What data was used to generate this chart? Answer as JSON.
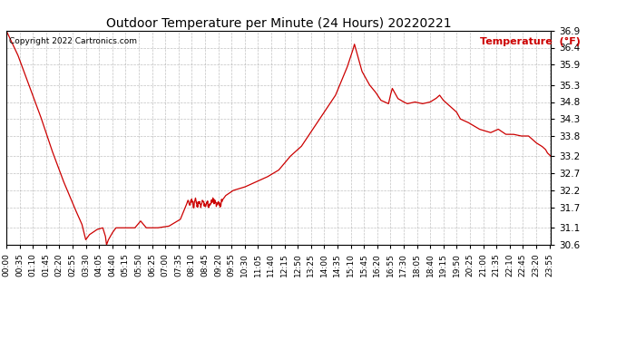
{
  "title": "Outdoor Temperature per Minute (24 Hours) 20220221",
  "copyright_text": "Copyright 2022 Cartronics.com",
  "legend_label": "Temperature  (°F)",
  "line_color": "#cc0000",
  "background_color": "#ffffff",
  "grid_color": "#999999",
  "ylim": [
    30.6,
    36.9
  ],
  "yticks": [
    30.6,
    31.1,
    31.7,
    32.2,
    32.7,
    33.2,
    33.8,
    34.3,
    34.8,
    35.3,
    35.9,
    36.4,
    36.9
  ],
  "x_labels": [
    "00:00",
    "00:35",
    "01:10",
    "01:45",
    "02:20",
    "02:55",
    "03:30",
    "04:05",
    "04:40",
    "05:15",
    "05:50",
    "06:25",
    "07:00",
    "07:35",
    "08:10",
    "08:45",
    "09:20",
    "09:55",
    "10:30",
    "11:05",
    "11:40",
    "12:15",
    "12:50",
    "13:25",
    "14:00",
    "14:35",
    "15:10",
    "15:45",
    "16:20",
    "16:55",
    "17:30",
    "18:05",
    "18:40",
    "19:15",
    "19:50",
    "20:25",
    "21:00",
    "21:35",
    "22:10",
    "22:45",
    "23:20",
    "23:55"
  ],
  "key_x": [
    0,
    30,
    60,
    90,
    120,
    150,
    180,
    200,
    210,
    220,
    240,
    255,
    262,
    265,
    270,
    280,
    290,
    310,
    340,
    355,
    370,
    400,
    430,
    460,
    475,
    480,
    485,
    490,
    495,
    500,
    505,
    510,
    515,
    520,
    525,
    530,
    535,
    540,
    545,
    550,
    555,
    560,
    565,
    570,
    580,
    600,
    630,
    660,
    690,
    720,
    750,
    780,
    810,
    840,
    870,
    900,
    915,
    920,
    930,
    940,
    950,
    960,
    975,
    990,
    1000,
    1010,
    1015,
    1020,
    1025,
    1035,
    1050,
    1060,
    1080,
    1100,
    1120,
    1135,
    1145,
    1155,
    1170,
    1190,
    1200,
    1220,
    1250,
    1280,
    1300,
    1320,
    1340,
    1360,
    1380,
    1400,
    1415,
    1425,
    1430,
    1435,
    1439
  ],
  "key_y": [
    36.9,
    36.2,
    35.3,
    34.4,
    33.4,
    32.5,
    31.7,
    31.2,
    30.75,
    30.9,
    31.05,
    31.1,
    30.85,
    30.6,
    30.75,
    30.95,
    31.1,
    31.1,
    31.1,
    31.3,
    31.1,
    31.1,
    31.15,
    31.35,
    31.75,
    31.9,
    31.75,
    31.9,
    31.75,
    31.9,
    31.75,
    31.85,
    31.75,
    31.9,
    31.75,
    31.85,
    31.75,
    31.85,
    31.95,
    31.85,
    31.8,
    31.9,
    31.75,
    31.9,
    32.05,
    32.2,
    32.3,
    32.45,
    32.6,
    32.8,
    33.2,
    33.5,
    34.0,
    34.5,
    35.0,
    35.8,
    36.3,
    36.5,
    36.1,
    35.7,
    35.5,
    35.3,
    35.1,
    34.85,
    34.8,
    34.75,
    35.0,
    35.2,
    35.1,
    34.9,
    34.8,
    34.75,
    34.8,
    34.75,
    34.8,
    34.9,
    35.0,
    34.85,
    34.7,
    34.5,
    34.3,
    34.2,
    34.0,
    33.9,
    34.0,
    33.85,
    33.85,
    33.8,
    33.8,
    33.6,
    33.5,
    33.4,
    33.3,
    33.25,
    33.2
  ]
}
